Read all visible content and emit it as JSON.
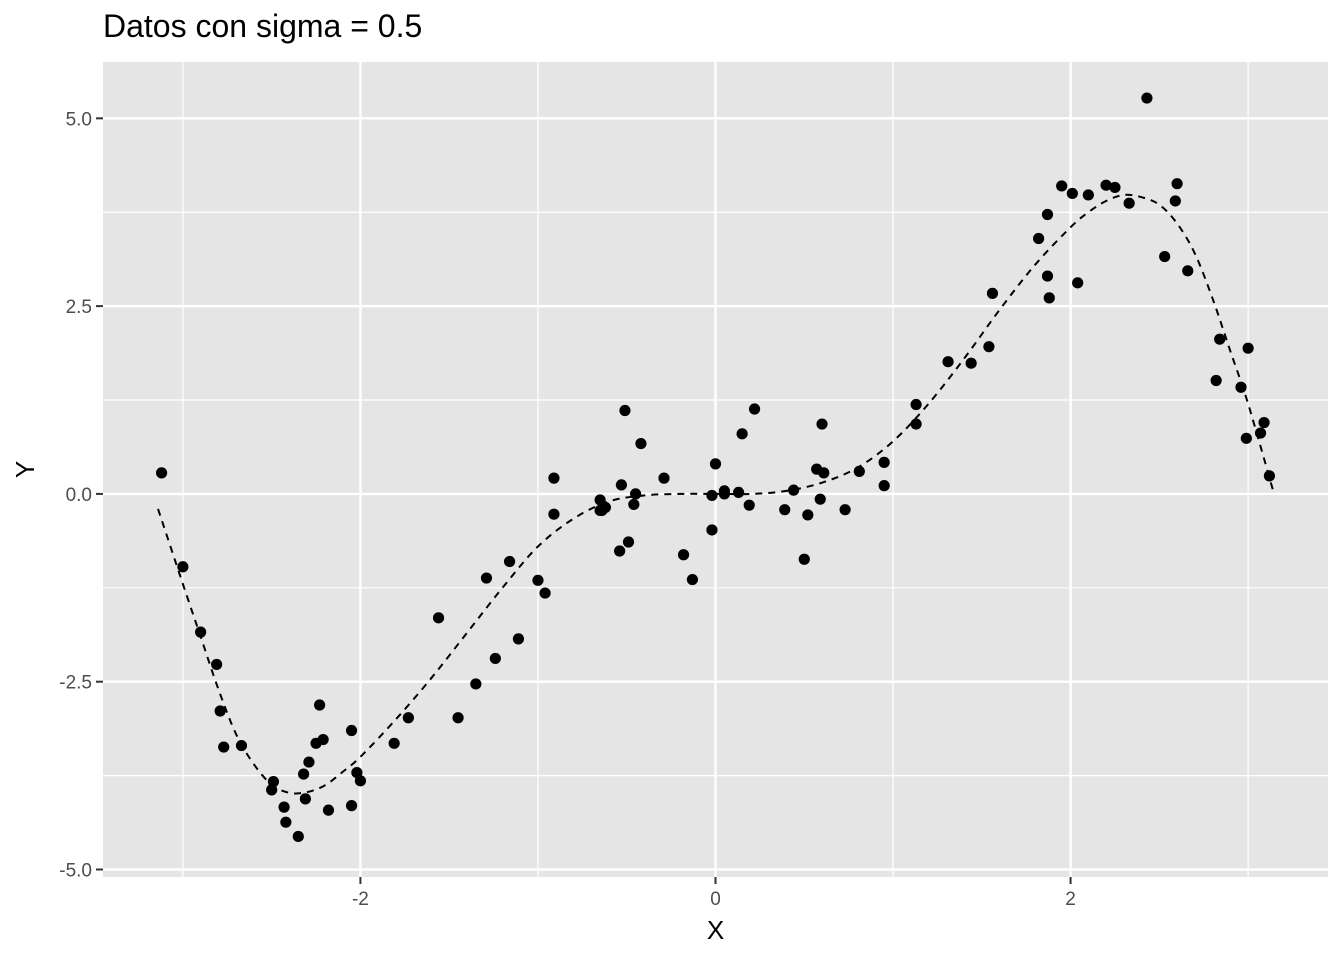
{
  "chart_data": {
    "type": "scatter",
    "title": "Datos con sigma = 0.5",
    "xlabel": "X",
    "ylabel": "Y",
    "xlim": [
      -3.45,
      3.45
    ],
    "ylim": [
      -5.1,
      5.75
    ],
    "grid": true,
    "panel_color": "#e5e5e5",
    "grid_color": "#ffffff",
    "x_ticks": [
      {
        "value": -2,
        "label": "-2"
      },
      {
        "value": 0,
        "label": "0"
      },
      {
        "value": 2,
        "label": "2"
      }
    ],
    "y_ticks": [
      {
        "value": -5,
        "label": "-5.0"
      },
      {
        "value": -2.5,
        "label": "-2.5"
      },
      {
        "value": 0,
        "label": "0.0"
      },
      {
        "value": 2.5,
        "label": "2.5"
      },
      {
        "value": 5,
        "label": "5.0"
      }
    ],
    "points": {
      "x": [
        -3.12,
        -3.0,
        -2.9,
        -2.81,
        -2.79,
        -2.77,
        -2.67,
        -2.5,
        -2.49,
        -2.43,
        -2.42,
        -2.35,
        -2.32,
        -2.31,
        -2.29,
        -2.25,
        -2.23,
        -2.21,
        -2.18,
        -2.05,
        -2.05,
        -2.02,
        -2.0,
        -1.81,
        -1.73,
        -1.56,
        -1.45,
        -1.35,
        -1.29,
        -1.24,
        -1.16,
        -1.11,
        -1.0,
        -0.96,
        -0.91,
        -0.91,
        -0.65,
        -0.65,
        -0.64,
        -0.62,
        -0.54,
        -0.53,
        -0.51,
        -0.49,
        -0.46,
        -0.45,
        -0.42,
        -0.29,
        -0.18,
        -0.13,
        -0.02,
        -0.02,
        0.0,
        0.05,
        0.05,
        0.13,
        0.15,
        0.19,
        0.22,
        0.39,
        0.44,
        0.5,
        0.52,
        0.57,
        0.59,
        0.6,
        0.61,
        0.73,
        0.81,
        0.95,
        0.95,
        1.13,
        1.13,
        1.31,
        1.44,
        1.54,
        1.56,
        1.82,
        1.87,
        1.87,
        1.88,
        1.95,
        2.01,
        2.04,
        2.1,
        2.2,
        2.25,
        2.33,
        2.43,
        2.53,
        2.59,
        2.6,
        2.66,
        2.82,
        2.84,
        2.96,
        2.99,
        3.0,
        3.07,
        3.09,
        3.12
      ],
      "y": [
        0.28,
        -0.97,
        -1.84,
        -2.27,
        -2.89,
        -3.37,
        -3.35,
        -3.94,
        -3.83,
        -4.17,
        -4.37,
        -4.56,
        -3.73,
        -4.06,
        -3.57,
        -3.32,
        -2.81,
        -3.27,
        -4.21,
        -3.15,
        -4.15,
        -3.71,
        -3.82,
        -3.32,
        -2.98,
        -1.65,
        -2.98,
        -2.53,
        -1.12,
        -2.19,
        -0.9,
        -1.93,
        -1.15,
        -1.32,
        0.21,
        -0.27,
        -0.08,
        -0.22,
        -0.22,
        -0.18,
        -0.76,
        0.12,
        1.11,
        -0.64,
        -0.14,
        0.0,
        0.67,
        0.21,
        -0.81,
        -1.14,
        -0.02,
        -0.48,
        0.4,
        0.04,
        0.0,
        0.02,
        0.8,
        -0.15,
        1.13,
        -0.21,
        0.05,
        -0.87,
        -0.28,
        0.33,
        -0.07,
        0.93,
        0.28,
        -0.21,
        0.3,
        0.42,
        0.11,
        1.19,
        0.93,
        1.76,
        1.74,
        1.96,
        2.67,
        3.4,
        3.72,
        2.9,
        2.61,
        4.1,
        4.0,
        2.81,
        3.98,
        4.11,
        4.08,
        3.87,
        5.27,
        3.16,
        3.9,
        4.13,
        2.97,
        1.51,
        2.06,
        1.42,
        0.74,
        1.94,
        0.81,
        0.95,
        0.24
      ]
    },
    "curve": {
      "x": [
        -3.14,
        -3.0,
        -2.9,
        -2.8,
        -2.7,
        -2.6,
        -2.5,
        -2.4,
        -2.3,
        -2.2,
        -2.1,
        -2.0,
        -1.8,
        -1.6,
        -1.4,
        -1.2,
        -1.0,
        -0.8,
        -0.6,
        -0.4,
        -0.2,
        0.0,
        0.2,
        0.4,
        0.6,
        0.8,
        1.0,
        1.2,
        1.4,
        1.6,
        1.8,
        2.0,
        2.1,
        2.2,
        2.3,
        2.4,
        2.5,
        2.6,
        2.7,
        2.8,
        2.9,
        3.0,
        3.14
      ],
      "y": [
        -0.2,
        -1.2,
        -1.9,
        -2.6,
        -3.2,
        -3.6,
        -3.87,
        -3.98,
        -3.97,
        -3.88,
        -3.7,
        -3.5,
        -3.0,
        -2.45,
        -1.85,
        -1.25,
        -0.7,
        -0.33,
        -0.1,
        -0.02,
        0.0,
        0.0,
        0.0,
        0.04,
        0.15,
        0.35,
        0.7,
        1.2,
        1.8,
        2.45,
        3.05,
        3.55,
        3.75,
        3.9,
        3.98,
        3.95,
        3.85,
        3.6,
        3.2,
        2.6,
        1.9,
        1.2,
        0.05
      ]
    }
  }
}
